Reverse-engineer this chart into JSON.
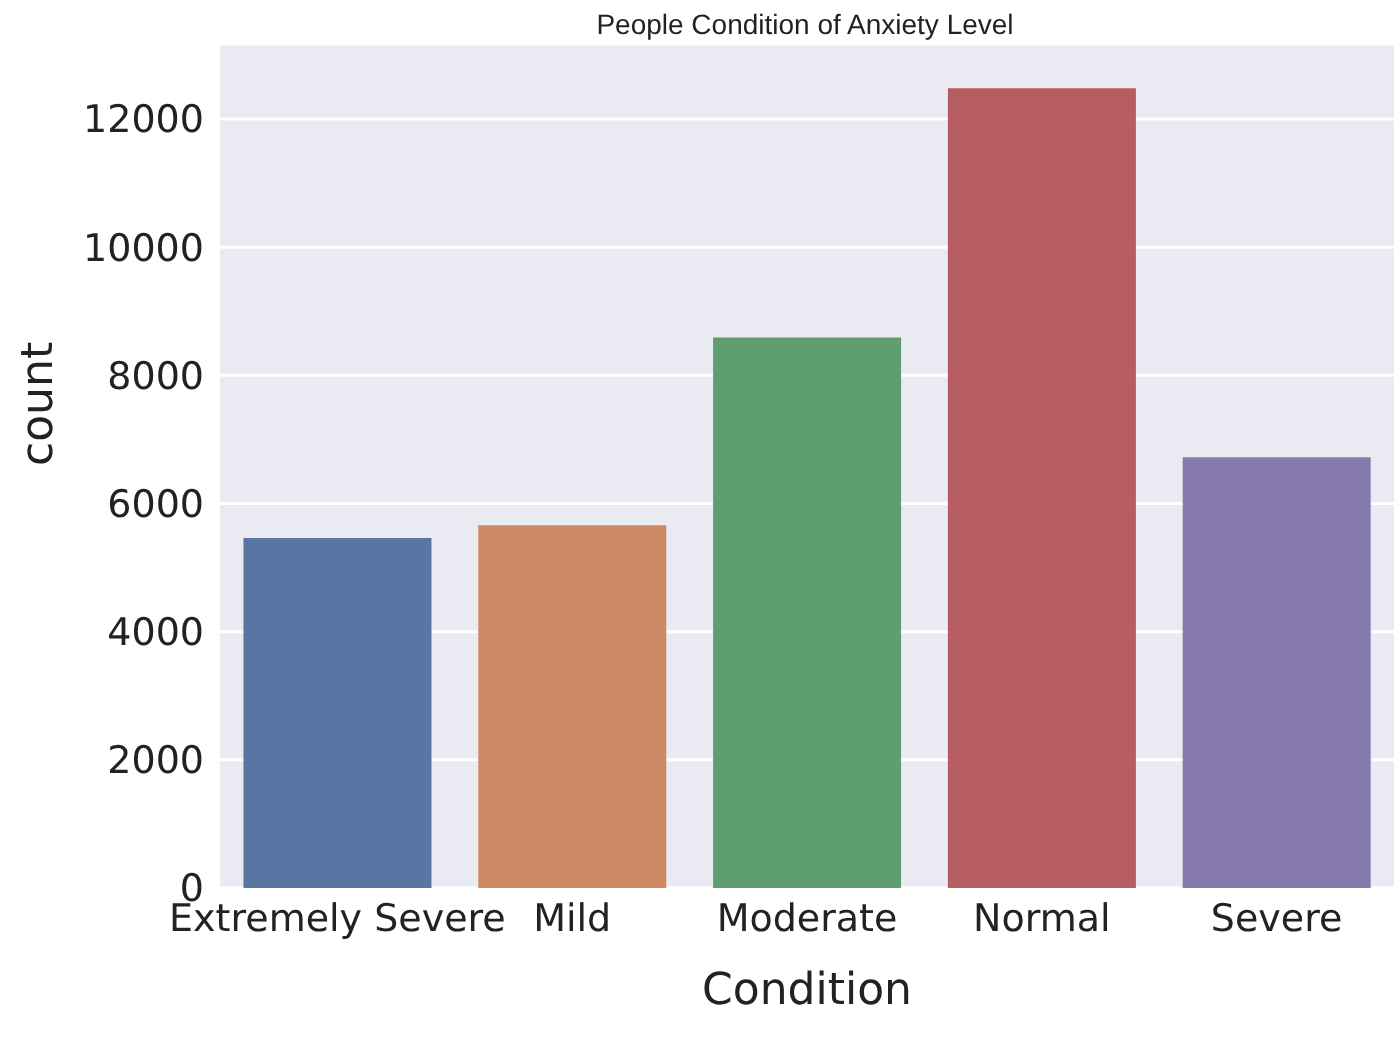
{
  "chart_data": {
    "type": "bar",
    "title": "People Condition of Anxiety Level",
    "xlabel": "Condition",
    "ylabel": "count",
    "categories": [
      "Extremely Severe",
      "Mild",
      "Moderate",
      "Normal",
      "Severe"
    ],
    "values": [
      5460,
      5660,
      8590,
      12480,
      6720
    ],
    "colors": [
      "#5875a4",
      "#cc8963",
      "#5f9e6e",
      "#b55d60",
      "#857aab"
    ],
    "ylim": [
      0,
      13170
    ],
    "yticks": [
      0,
      2000,
      4000,
      6000,
      8000,
      10000,
      12000
    ],
    "grid": "y"
  }
}
